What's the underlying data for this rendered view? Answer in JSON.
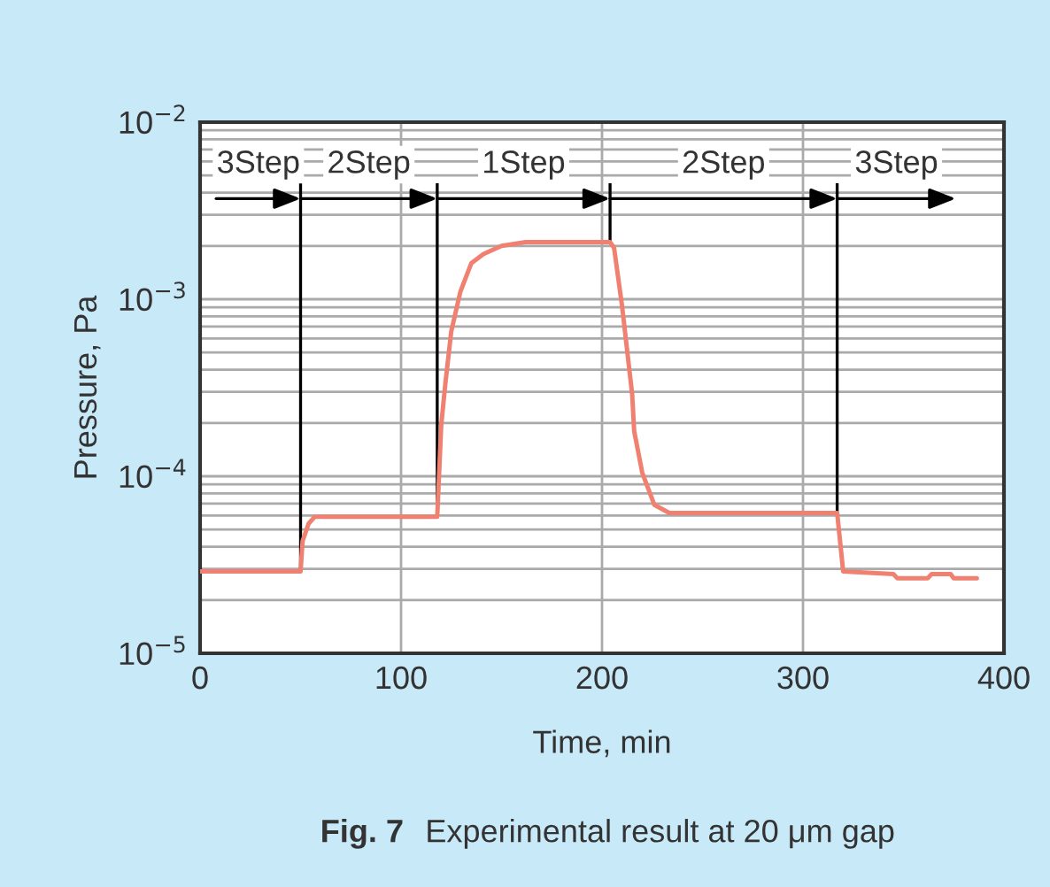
{
  "chart_data": {
    "type": "line",
    "title": "Fig. 7",
    "subtitle": "Experimental result at 20 μm gap",
    "xlabel": "Time, min",
    "ylabel": "Pressure, Pa",
    "x": [
      0,
      50,
      51,
      54,
      57,
      118,
      120,
      122,
      125,
      129.5,
      135,
      141,
      150,
      162,
      204,
      206,
      210,
      215,
      216,
      220,
      226,
      233.5,
      317,
      320,
      345,
      347,
      362,
      364,
      373.5,
      375,
      386.5
    ],
    "series": [
      {
        "color": "#f08070",
        "values": [
          2.9e-05,
          2.9e-05,
          4.3e-05,
          5.4e-05,
          5.9e-05,
          5.9e-05,
          0.000195,
          0.00033,
          0.00066,
          0.0011,
          0.0016,
          0.0018,
          0.002,
          0.0021,
          0.0021,
          0.00195,
          0.00091,
          0.00029,
          0.00018,
          0.000105,
          6.9e-05,
          6.2e-05,
          6.2e-05,
          2.9e-05,
          2.8e-05,
          2.65e-05,
          2.65e-05,
          2.8e-05,
          2.8e-05,
          2.65e-05,
          2.65e-05
        ]
      }
    ],
    "log": "y",
    "xlim": [
      0,
      400
    ],
    "ylim": [
      1e-05,
      0.01
    ],
    "xticks": [
      0,
      100,
      200,
      300,
      400
    ],
    "yticks": [
      {
        "value": 1e-05,
        "label": "10$^{−5}$"
      },
      {
        "value": 0.0001,
        "label": "10$^{−4}$"
      },
      {
        "value": 0.001,
        "label": "10$^{−3}$"
      },
      {
        "value": 0.01,
        "label": "10$^{−2}$"
      }
    ],
    "grid": true,
    "ref_lines": [
      {
        "axis": "x",
        "value": 50,
        "color": "#000000"
      },
      {
        "axis": "x",
        "value": 118,
        "color": "#000000"
      },
      {
        "axis": "x",
        "value": 204,
        "color": "#000000"
      },
      {
        "axis": "x",
        "value": 317,
        "color": "#000000"
      }
    ],
    "annotations": [
      {
        "text": "3Step",
        "x": 50,
        "y": 0.0037
      },
      {
        "text": "2Step",
        "x": 118,
        "y": 0.0037
      },
      {
        "text": "1Step",
        "x": 204,
        "y": 0.0037
      },
      {
        "text": "2Step",
        "x": 317,
        "y": 0.0037
      },
      "3Step"
    ]
  }
}
